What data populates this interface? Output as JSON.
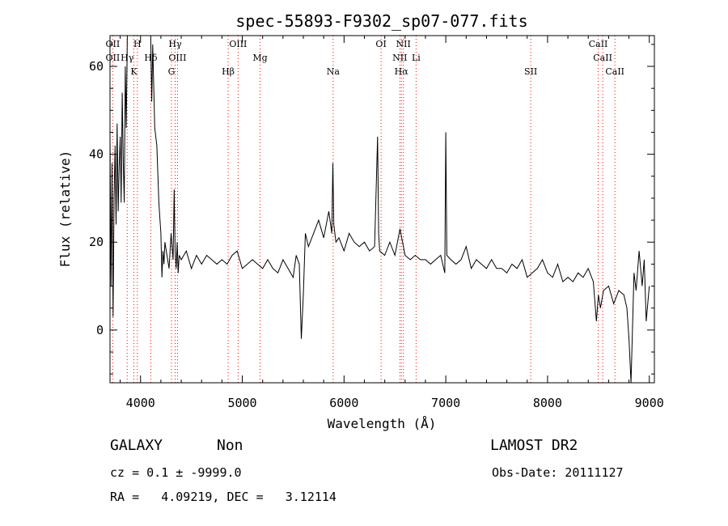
{
  "chart_data": {
    "type": "line",
    "title": "spec-55893-F9302_sp07-077.fits",
    "xlabel": "Wavelength (Å)",
    "ylabel": "Flux (relative)",
    "xlim": [
      3700,
      9050
    ],
    "ylim": [
      -12,
      67
    ],
    "xticks": [
      4000,
      5000,
      6000,
      7000,
      8000,
      9000
    ],
    "yticks": [
      0,
      20,
      40,
      60
    ],
    "line_color": "#000000",
    "marker_color": "#ff0000",
    "series": [
      {
        "x": [
          3700,
          3710,
          3720,
          3730,
          3740,
          3750,
          3760,
          3770,
          3780,
          3790,
          3800,
          3810,
          3820,
          3830,
          3840,
          3850,
          3860,
          3870,
          3880,
          3890,
          3900,
          3910,
          3920,
          3930,
          3940,
          3950,
          3960,
          3970,
          3980,
          3990,
          4000,
          4020,
          4040,
          4060,
          4080,
          4100,
          4110,
          4120,
          4140,
          4160,
          4180,
          4200,
          4210,
          4220,
          4230,
          4240,
          4260,
          4280,
          4300,
          4320,
          4330,
          4340,
          4350,
          4360,
          4370,
          4380,
          4400,
          4450,
          4500,
          4550,
          4600,
          4650,
          4700,
          4750,
          4800,
          4850,
          4900,
          4950,
          5000,
          5050,
          5100,
          5150,
          5200,
          5250,
          5300,
          5350,
          5400,
          5450,
          5500,
          5530,
          5560,
          5580,
          5600,
          5620,
          5650,
          5700,
          5750,
          5800,
          5850,
          5880,
          5890,
          5900,
          5920,
          5950,
          6000,
          6050,
          6100,
          6150,
          6200,
          6250,
          6300,
          6330,
          6340,
          6350,
          6400,
          6450,
          6500,
          6550,
          6600,
          6650,
          6700,
          6750,
          6800,
          6850,
          6900,
          6950,
          6990,
          7000,
          7010,
          7050,
          7100,
          7150,
          7200,
          7250,
          7300,
          7350,
          7400,
          7450,
          7500,
          7550,
          7600,
          7650,
          7700,
          7750,
          7800,
          7850,
          7900,
          7950,
          8000,
          8050,
          8100,
          8150,
          8200,
          8250,
          8300,
          8350,
          8400,
          8450,
          8480,
          8500,
          8520,
          8550,
          8600,
          8650,
          8700,
          8750,
          8780,
          8800,
          8820,
          8850,
          8870,
          8900,
          8930,
          8950,
          8970,
          9000
        ],
        "y": [
          44,
          10,
          38,
          3,
          30,
          42,
          24,
          47,
          27,
          37,
          44,
          29,
          54,
          38,
          29,
          60,
          46,
          67,
          67,
          67,
          67,
          67,
          67,
          67,
          67,
          67,
          67,
          67,
          67,
          67,
          67,
          67,
          67,
          67,
          67,
          67,
          52,
          65,
          46,
          42,
          29,
          22,
          12,
          18,
          15,
          20,
          17,
          14,
          22,
          16,
          32,
          18,
          14,
          20,
          13,
          17,
          16,
          18,
          14,
          17,
          15,
          17,
          16,
          15,
          16,
          15,
          17,
          18,
          14,
          15,
          16,
          15,
          14,
          16,
          14,
          13,
          16,
          14,
          12,
          17,
          15,
          -2,
          8,
          22,
          19,
          22,
          25,
          21,
          27,
          22,
          38,
          24,
          20,
          21,
          18,
          22,
          20,
          19,
          20,
          18,
          19,
          44,
          22,
          18,
          17,
          20,
          17,
          23,
          17,
          16,
          17,
          16,
          16,
          15,
          16,
          17,
          13,
          45,
          17,
          16,
          15,
          16,
          19,
          14,
          16,
          15,
          14,
          16,
          14,
          14,
          13,
          15,
          14,
          16,
          12,
          13,
          14,
          16,
          13,
          12,
          15,
          11,
          12,
          11,
          13,
          12,
          14,
          11,
          2,
          8,
          5,
          9,
          10,
          6,
          9,
          8,
          5,
          -2,
          -12,
          13,
          9,
          18,
          10,
          16,
          2,
          10
        ]
      }
    ],
    "line_markers": [
      {
        "x": 3727,
        "labels": [
          "OII",
          "OII"
        ]
      },
      {
        "x": 3869,
        "labels": [
          "Hγ"
        ]
      },
      {
        "x": 3934,
        "labels": [
          "K"
        ]
      },
      {
        "x": 3969,
        "labels": [
          "H"
        ]
      },
      {
        "x": 4101,
        "labels": [
          "Hδ"
        ]
      },
      {
        "x": 4304,
        "labels": [
          "G"
        ]
      },
      {
        "x": 4340,
        "labels": [
          "Hγ"
        ]
      },
      {
        "x": 4363,
        "labels": [
          "OIII"
        ]
      },
      {
        "x": 4861,
        "labels": [
          "Hβ"
        ]
      },
      {
        "x": 4959,
        "labels": [
          "OIII"
        ]
      },
      {
        "x": 5175,
        "labels": [
          "Mg"
        ]
      },
      {
        "x": 5893,
        "labels": [
          "Na"
        ]
      },
      {
        "x": 6364,
        "labels": [
          "OI"
        ]
      },
      {
        "x": 6548,
        "labels": [
          "NII"
        ]
      },
      {
        "x": 6563,
        "labels": [
          "Hα"
        ]
      },
      {
        "x": 6583,
        "labels": [
          "NII"
        ]
      },
      {
        "x": 6708,
        "labels": [
          "Li"
        ]
      },
      {
        "x": 7835,
        "labels": [
          "SII"
        ]
      },
      {
        "x": 8498,
        "labels": [
          "CaII"
        ]
      },
      {
        "x": 8542,
        "labels": [
          "CaII"
        ]
      },
      {
        "x": 8662,
        "labels": [
          "CaII"
        ]
      }
    ]
  },
  "footer": {
    "class_text": "GALAXY",
    "subclass_text": "Non",
    "survey_text": "LAMOST DR2",
    "cz_text": "cz = 0.1 ± -9999.0",
    "obsdate_text": "Obs-Date: 20111127",
    "coords_text": "RA =   4.09219, DEC =   3.12114"
  }
}
